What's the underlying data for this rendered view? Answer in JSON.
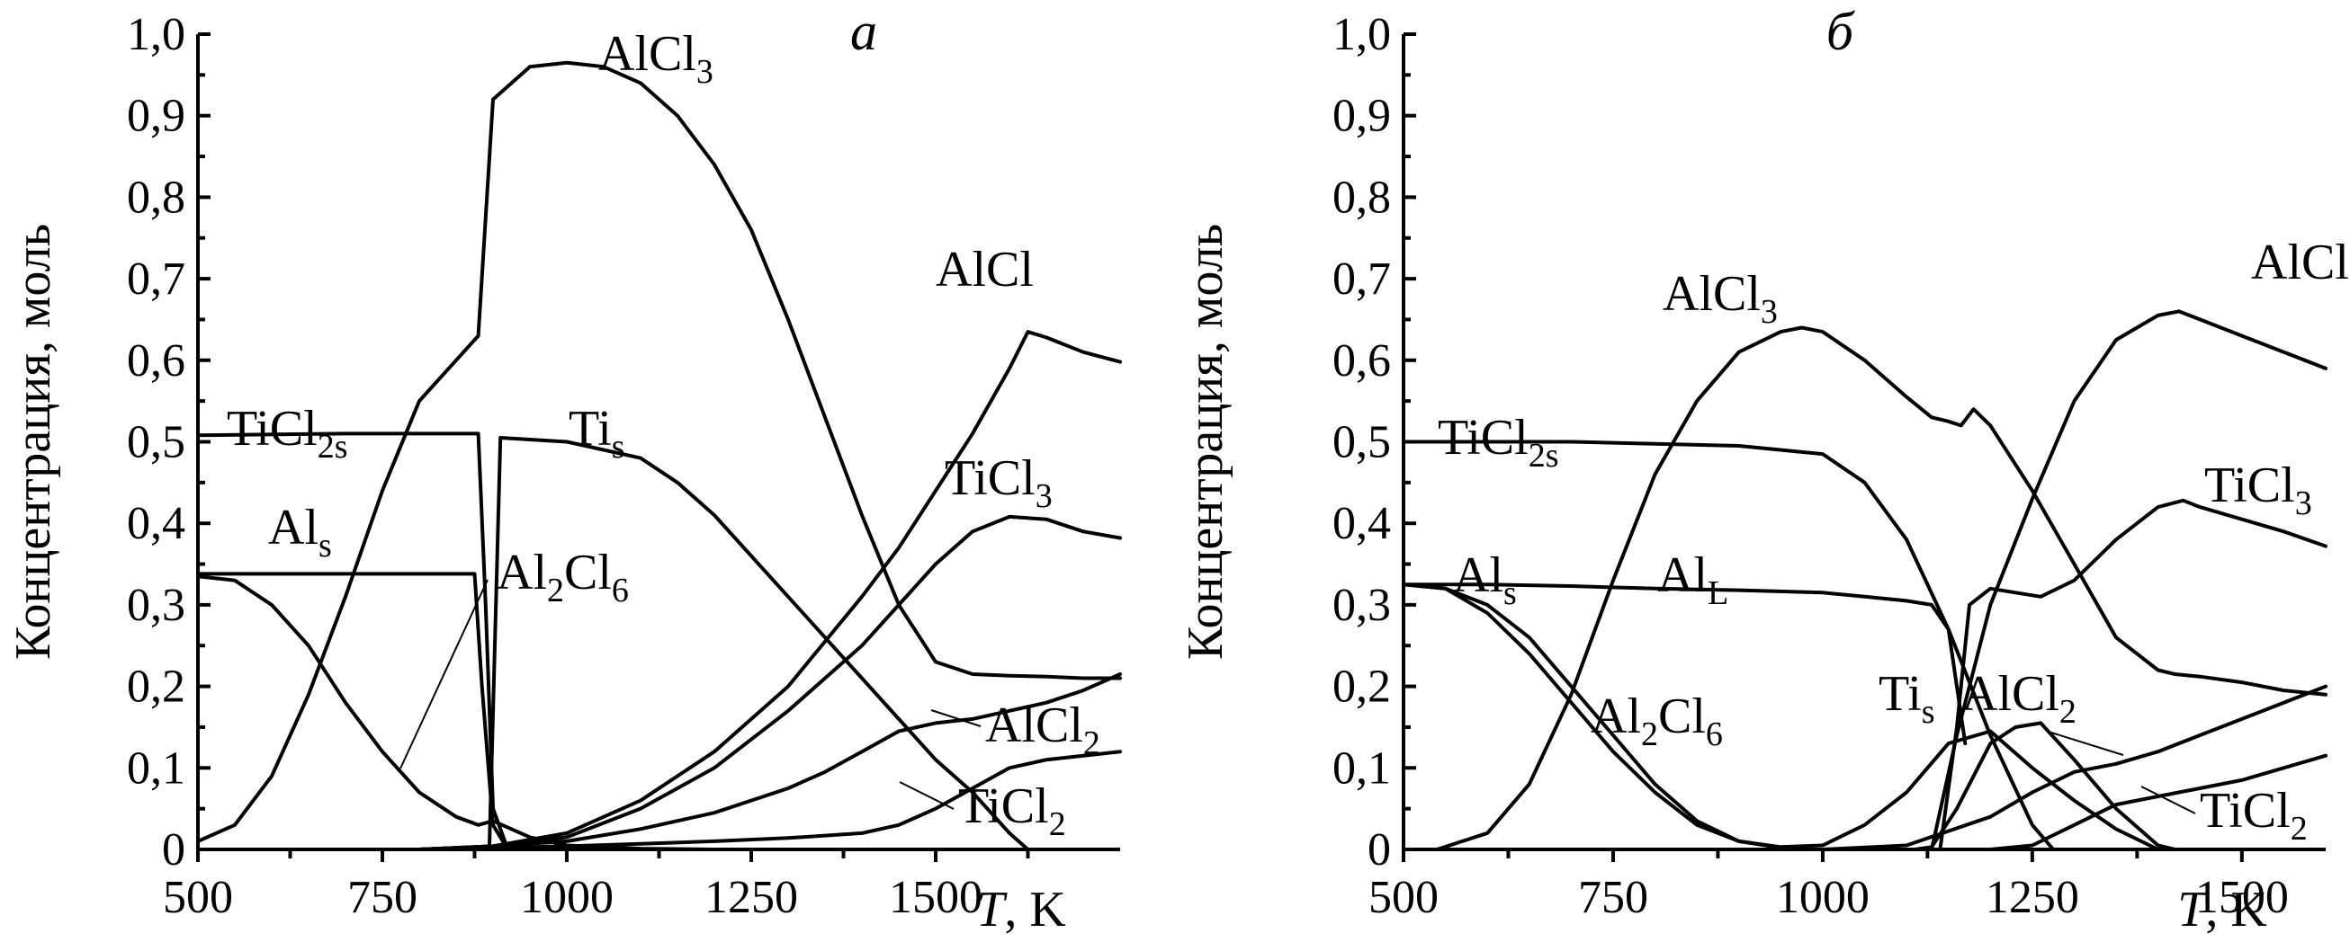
{
  "chart_data": [
    {
      "type": "line",
      "panel": "a",
      "ylabel": "Концентрация, моль",
      "xlabel": "T, K",
      "xlabel_var": "T",
      "xlabel_unit": ", K",
      "xlim": [
        500,
        1750
      ],
      "ylim": [
        0,
        1.0
      ],
      "x_ticks": [
        "500",
        "750",
        "1000",
        "1250",
        "1500"
      ],
      "x_tick_values": [
        500,
        750,
        1000,
        1250,
        1500
      ],
      "y_ticks": [
        "0",
        "0,1",
        "0,2",
        "0,3",
        "0,4",
        "0,5",
        "0,6",
        "0,7",
        "0,8",
        "0,9",
        "1,0"
      ],
      "y_tick_values": [
        0,
        0.1,
        0.2,
        0.3,
        0.4,
        0.5,
        0.6,
        0.7,
        0.8,
        0.9,
        1.0
      ],
      "grid": false,
      "series": [
        {
          "name": "AlCl3",
          "x": [
            500,
            550,
            600,
            650,
            700,
            750,
            800,
            850,
            880,
            900,
            950,
            1000,
            1050,
            1100,
            1150,
            1200,
            1250,
            1300,
            1350,
            1400,
            1450,
            1500,
            1550,
            1600,
            1650,
            1700,
            1750
          ],
          "y": [
            0.01,
            0.03,
            0.09,
            0.19,
            0.31,
            0.44,
            0.55,
            0.6,
            0.63,
            0.92,
            0.96,
            0.965,
            0.96,
            0.94,
            0.9,
            0.84,
            0.76,
            0.65,
            0.53,
            0.41,
            0.3,
            0.23,
            0.215,
            0.213,
            0.212,
            0.21,
            0.21
          ]
        },
        {
          "name": "Al2Cl6",
          "x": [
            500,
            550,
            600,
            650,
            700,
            750,
            800,
            850,
            880,
            900,
            950,
            1000,
            1100,
            1200
          ],
          "y": [
            0.335,
            0.33,
            0.3,
            0.25,
            0.18,
            0.12,
            0.07,
            0.04,
            0.03,
            0.035,
            0.015,
            0.005,
            0.001,
            0
          ]
        },
        {
          "name": "TiCl2s",
          "x": [
            500,
            700,
            880,
            890,
            900,
            920
          ],
          "y": [
            0.508,
            0.51,
            0.51,
            0.3,
            0.05,
            0
          ]
        },
        {
          "name": "Als",
          "x": [
            500,
            700,
            875,
            885,
            900,
            920
          ],
          "y": [
            0.338,
            0.338,
            0.338,
            0.2,
            0.03,
            0
          ]
        },
        {
          "name": "Tis",
          "x": [
            500,
            880,
            895,
            910,
            1000,
            1100,
            1150,
            1200,
            1250,
            1300,
            1350,
            1400,
            1450,
            1500,
            1550,
            1600,
            1625
          ],
          "y": [
            0,
            0,
            0,
            0.505,
            0.5,
            0.48,
            0.45,
            0.41,
            0.36,
            0.31,
            0.26,
            0.21,
            0.16,
            0.11,
            0.07,
            0.02,
            0
          ]
        },
        {
          "name": "AlCl",
          "x": [
            500,
            800,
            900,
            1000,
            1100,
            1200,
            1300,
            1400,
            1450,
            1500,
            1550,
            1600,
            1625,
            1650,
            1700,
            1750
          ],
          "y": [
            0,
            0,
            0.004,
            0.02,
            0.06,
            0.12,
            0.2,
            0.31,
            0.37,
            0.44,
            0.51,
            0.59,
            0.635,
            0.628,
            0.61,
            0.598
          ]
        },
        {
          "name": "TiCl3",
          "x": [
            500,
            800,
            900,
            1000,
            1100,
            1200,
            1300,
            1400,
            1450,
            1500,
            1550,
            1600,
            1650,
            1700,
            1750
          ],
          "y": [
            0,
            0,
            0.004,
            0.015,
            0.05,
            0.1,
            0.17,
            0.25,
            0.3,
            0.35,
            0.39,
            0.408,
            0.405,
            0.39,
            0.382
          ]
        },
        {
          "name": "AlCl2",
          "x": [
            500,
            800,
            900,
            1000,
            1100,
            1200,
            1300,
            1350,
            1400,
            1450,
            1500,
            1550,
            1600,
            1650,
            1700,
            1750
          ],
          "y": [
            0,
            0,
            0.004,
            0.01,
            0.025,
            0.045,
            0.075,
            0.095,
            0.12,
            0.145,
            0.155,
            0.16,
            0.17,
            0.18,
            0.195,
            0.215
          ]
        },
        {
          "name": "TiCl2",
          "x": [
            500,
            800,
            900,
            1000,
            1100,
            1200,
            1300,
            1400,
            1450,
            1500,
            1550,
            1600,
            1650,
            1700,
            1750
          ],
          "y": [
            0,
            0,
            0.002,
            0.004,
            0.007,
            0.01,
            0.014,
            0.02,
            0.03,
            0.05,
            0.075,
            0.1,
            0.11,
            0.115,
            0.12
          ]
        }
      ],
      "annotations": [
        {
          "base": "AlCl",
          "sub": "3"
        },
        {
          "base": "TiCl",
          "sub": "2s"
        },
        {
          "base": "Ti",
          "sub": "s"
        },
        {
          "base": "AlCl",
          "sub": ""
        },
        {
          "base": "TiCl",
          "sub": "3"
        },
        {
          "base": "Al",
          "sub": "s"
        },
        {
          "base": "Al",
          "sub": "2",
          "base2": "Cl",
          "sub2": "6"
        },
        {
          "base": "AlCl",
          "sub": "2"
        },
        {
          "base": "TiCl",
          "sub": "2"
        }
      ]
    },
    {
      "type": "line",
      "panel": "б",
      "ylabel": "Концентрация, моль",
      "xlabel": "T, K",
      "xlabel_var": "T",
      "xlabel_unit": ", K",
      "xlim": [
        500,
        1600
      ],
      "ylim": [
        0,
        1.0
      ],
      "x_ticks": [
        "500",
        "750",
        "1000",
        "1250",
        "1500"
      ],
      "x_tick_values": [
        500,
        750,
        1000,
        1250,
        1500
      ],
      "y_ticks": [
        "0",
        "0,1",
        "0,2",
        "0,3",
        "0,4",
        "0,5",
        "0,6",
        "0,7",
        "0,8",
        "0,9",
        "1,0"
      ],
      "y_tick_values": [
        0,
        0.1,
        0.2,
        0.3,
        0.4,
        0.5,
        0.6,
        0.7,
        0.8,
        0.9,
        1.0
      ],
      "grid": false,
      "series": [
        {
          "name": "AlCl3",
          "x": [
            540,
            600,
            650,
            700,
            750,
            800,
            850,
            900,
            950,
            975,
            1000,
            1050,
            1100,
            1130,
            1150,
            1165,
            1180,
            1200,
            1250,
            1300,
            1350,
            1400,
            1420,
            1450,
            1500,
            1550,
            1600
          ],
          "y": [
            0,
            0.02,
            0.08,
            0.19,
            0.33,
            0.46,
            0.55,
            0.61,
            0.635,
            0.64,
            0.635,
            0.6,
            0.555,
            0.53,
            0.525,
            0.52,
            0.54,
            0.52,
            0.44,
            0.35,
            0.26,
            0.22,
            0.215,
            0.212,
            0.205,
            0.195,
            0.19
          ]
        },
        {
          "name": "Al2Cl6",
          "x": [
            500,
            550,
            600,
            650,
            700,
            750,
            800,
            850,
            900,
            950,
            1000,
            1050,
            1100,
            1150,
            1200,
            1250,
            1300,
            1350,
            1400
          ],
          "y": [
            0.325,
            0.32,
            0.3,
            0.26,
            0.2,
            0.14,
            0.08,
            0.035,
            0.01,
            0.003,
            0.005,
            0.03,
            0.07,
            0.13,
            0.145,
            0.1,
            0.06,
            0.025,
            0
          ]
        },
        {
          "name": "TiCl2s",
          "x": [
            500,
            700,
            900,
            1000,
            1050,
            1100,
            1150,
            1200,
            1250,
            1275
          ],
          "y": [
            0.5,
            0.5,
            0.495,
            0.485,
            0.45,
            0.38,
            0.27,
            0.14,
            0.03,
            0
          ]
        },
        {
          "name": "Als",
          "x": [
            500,
            550,
            600,
            650,
            700,
            750,
            800,
            850,
            900,
            950,
            975
          ],
          "y": [
            0.325,
            0.32,
            0.29,
            0.24,
            0.18,
            0.12,
            0.07,
            0.03,
            0.01,
            0.002,
            0
          ]
        },
        {
          "name": "AlL",
          "x": [
            500,
            600,
            700,
            800,
            900,
            1000,
            1050,
            1100,
            1130,
            1150,
            1160,
            1170
          ],
          "y": [
            0.325,
            0.325,
            0.323,
            0.32,
            0.318,
            0.315,
            0.31,
            0.305,
            0.3,
            0.27,
            0.2,
            0.13
          ]
        },
        {
          "name": "Tis",
          "x": [
            500,
            1110,
            1130,
            1160,
            1200,
            1230,
            1260,
            1300,
            1350,
            1400,
            1420
          ],
          "y": [
            0,
            0,
            0.003,
            0.05,
            0.13,
            0.15,
            0.155,
            0.11,
            0.05,
            0.005,
            0
          ]
        },
        {
          "name": "AlCl",
          "x": [
            500,
            1130,
            1160,
            1200,
            1250,
            1300,
            1350,
            1400,
            1425,
            1450,
            1500,
            1550,
            1600
          ],
          "y": [
            0,
            0,
            0.14,
            0.3,
            0.43,
            0.55,
            0.625,
            0.655,
            0.66,
            0.65,
            0.63,
            0.61,
            0.59
          ]
        },
        {
          "name": "TiCl3",
          "x": [
            500,
            1140,
            1160,
            1175,
            1200,
            1230,
            1260,
            1300,
            1350,
            1400,
            1430,
            1450,
            1500,
            1550,
            1600
          ],
          "y": [
            0,
            0,
            0.15,
            0.3,
            0.32,
            0.315,
            0.31,
            0.33,
            0.38,
            0.42,
            0.428,
            0.42,
            0.405,
            0.39,
            0.372
          ]
        },
        {
          "name": "AlCl2",
          "x": [
            500,
            1000,
            1100,
            1200,
            1250,
            1300,
            1350,
            1400,
            1450,
            1500,
            1550,
            1600
          ],
          "y": [
            0,
            0,
            0.005,
            0.04,
            0.07,
            0.095,
            0.105,
            0.12,
            0.14,
            0.16,
            0.18,
            0.2
          ]
        },
        {
          "name": "TiCl2",
          "x": [
            500,
            1200,
            1250,
            1300,
            1350,
            1400,
            1450,
            1500,
            1550,
            1600
          ],
          "y": [
            0,
            0,
            0.005,
            0.03,
            0.055,
            0.065,
            0.075,
            0.085,
            0.1,
            0.115
          ]
        }
      ],
      "annotations": [
        {
          "base": "AlCl",
          "sub": "3"
        },
        {
          "base": "TiCl",
          "sub": "2s"
        },
        {
          "base": "AlCl",
          "sub": ""
        },
        {
          "base": "TiCl",
          "sub": "3"
        },
        {
          "base": "Al",
          "sub": "s"
        },
        {
          "base": "Al",
          "sub": "L"
        },
        {
          "base": "Al",
          "sub": "2",
          "base2": "Cl",
          "sub2": "6"
        },
        {
          "base": "Ti",
          "sub": "s"
        },
        {
          "base": "AlCl",
          "sub": "2"
        },
        {
          "base": "TiCl",
          "sub": "2"
        }
      ]
    }
  ]
}
